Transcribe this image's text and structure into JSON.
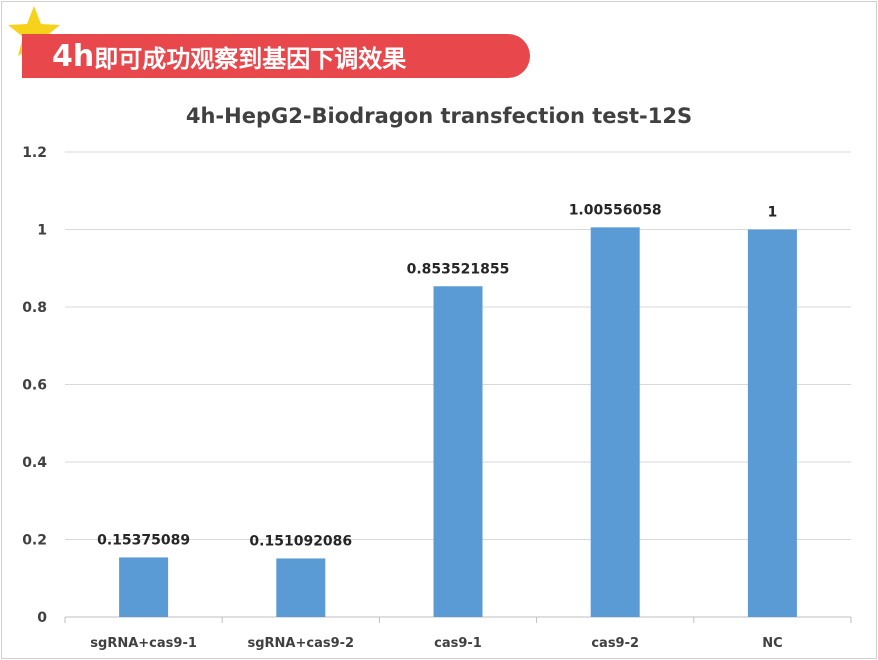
{
  "banner": {
    "big": "4h",
    "small": "即可成功观察到基因下调效果",
    "icon": "star-icon",
    "color": "#e8474c",
    "star_color": "#f7d21b"
  },
  "chart_data": {
    "type": "bar",
    "title": "4h-HepG2-Biodragon transfection test-12S",
    "categories": [
      "sgRNA+cas9-1",
      "sgRNA+cas9-2",
      "cas9-1",
      "cas9-2",
      "NC"
    ],
    "values": [
      0.15375089,
      0.151092086,
      0.853521855,
      1.00556058,
      1
    ],
    "data_labels": [
      "0.15375089",
      "0.151092086",
      "0.853521855",
      "1.00556058",
      "1"
    ],
    "ylim": [
      0,
      1.2
    ],
    "yticks": [
      0,
      0.2,
      0.4,
      0.6,
      0.8,
      1,
      1.2
    ],
    "ytick_labels": [
      "0",
      "0.2",
      "0.4",
      "0.6",
      "0.8",
      "1",
      "1.2"
    ],
    "xlabel": "",
    "ylabel": "",
    "grid": true,
    "bar_color": "#5b9bd5"
  }
}
